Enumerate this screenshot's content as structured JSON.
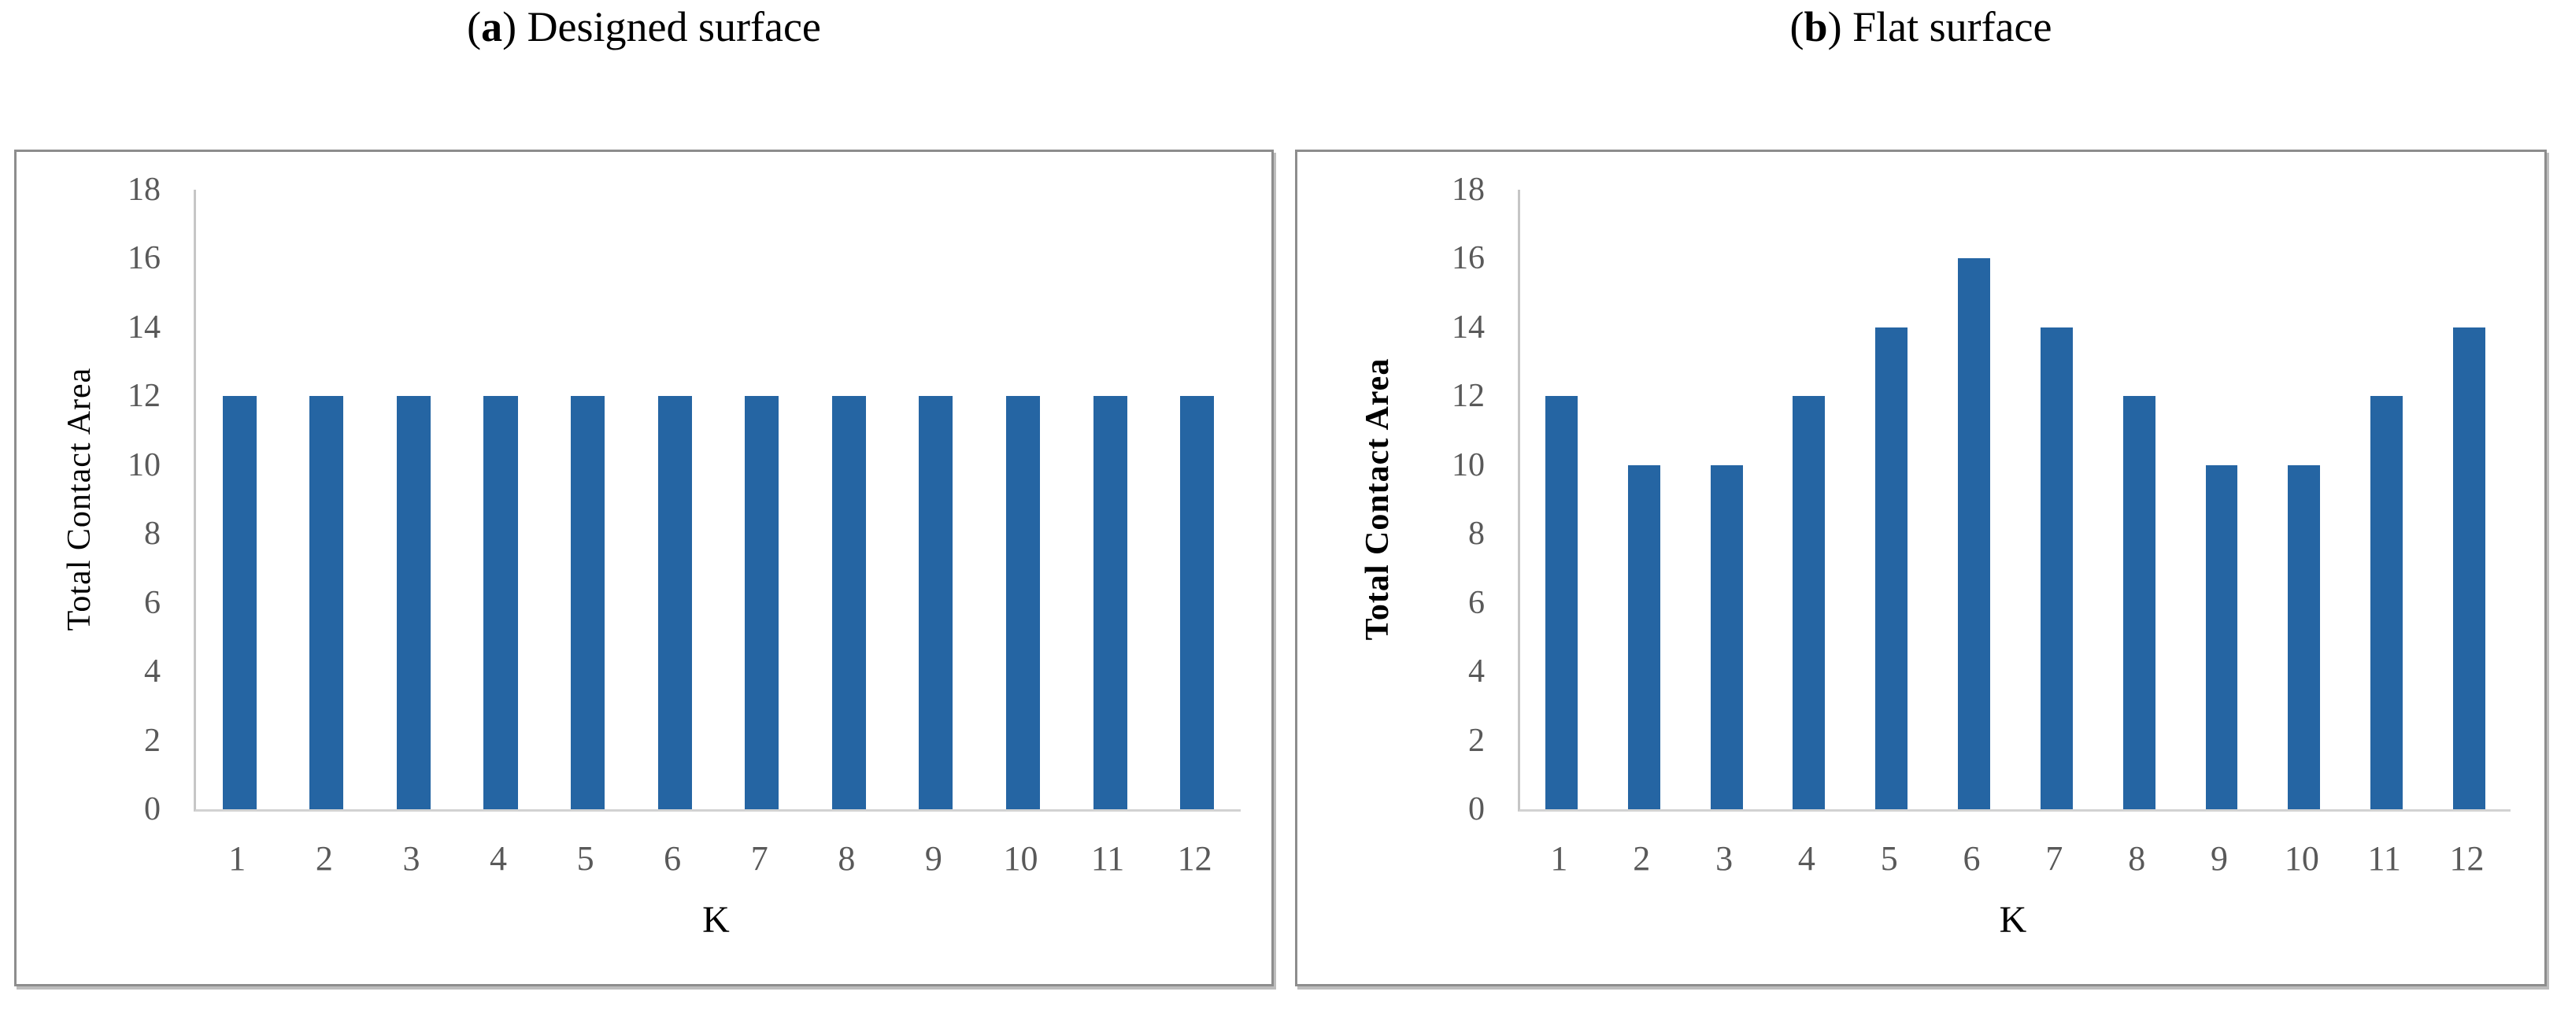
{
  "colors": {
    "bar_blue": "#2565A3",
    "tick_text": "#595959",
    "axis_line": "#c6c6c6",
    "baseline": "#d2d2d2",
    "panel_border": "#8d8d8d",
    "title_text": "#000000",
    "background": "#ffffff"
  },
  "chart_data": [
    {
      "type": "bar",
      "title": "(a) Designed surface",
      "title_open": "(",
      "title_letter": "a",
      "title_close": ")",
      "title_rest": " Designed surface",
      "categories": [
        "1",
        "2",
        "3",
        "4",
        "5",
        "6",
        "7",
        "8",
        "9",
        "10",
        "11",
        "12"
      ],
      "values": [
        12,
        12,
        12,
        12,
        12,
        12,
        12,
        12,
        12,
        12,
        12,
        12
      ],
      "xlabel": "K",
      "ylabel": "Total Contact Area",
      "ylabel_bold": false,
      "ylim": [
        0,
        18
      ],
      "ytick_step": 2,
      "bar_color": "#2565A3",
      "grid": false,
      "legend": "none"
    },
    {
      "type": "bar",
      "title": "(b) Flat surface",
      "title_open": "(",
      "title_letter": "b",
      "title_close": ")",
      "title_rest": " Flat surface",
      "categories": [
        "1",
        "2",
        "3",
        "4",
        "5",
        "6",
        "7",
        "8",
        "9",
        "10",
        "11",
        "12"
      ],
      "values": [
        12,
        10,
        10,
        12,
        14,
        16,
        14,
        12,
        10,
        10,
        12,
        14
      ],
      "xlabel": "K",
      "ylabel": "Total Contact Area",
      "ylabel_bold": true,
      "ylim": [
        0,
        18
      ],
      "ytick_step": 2,
      "bar_color": "#2565A3",
      "grid": false,
      "legend": "none"
    }
  ]
}
